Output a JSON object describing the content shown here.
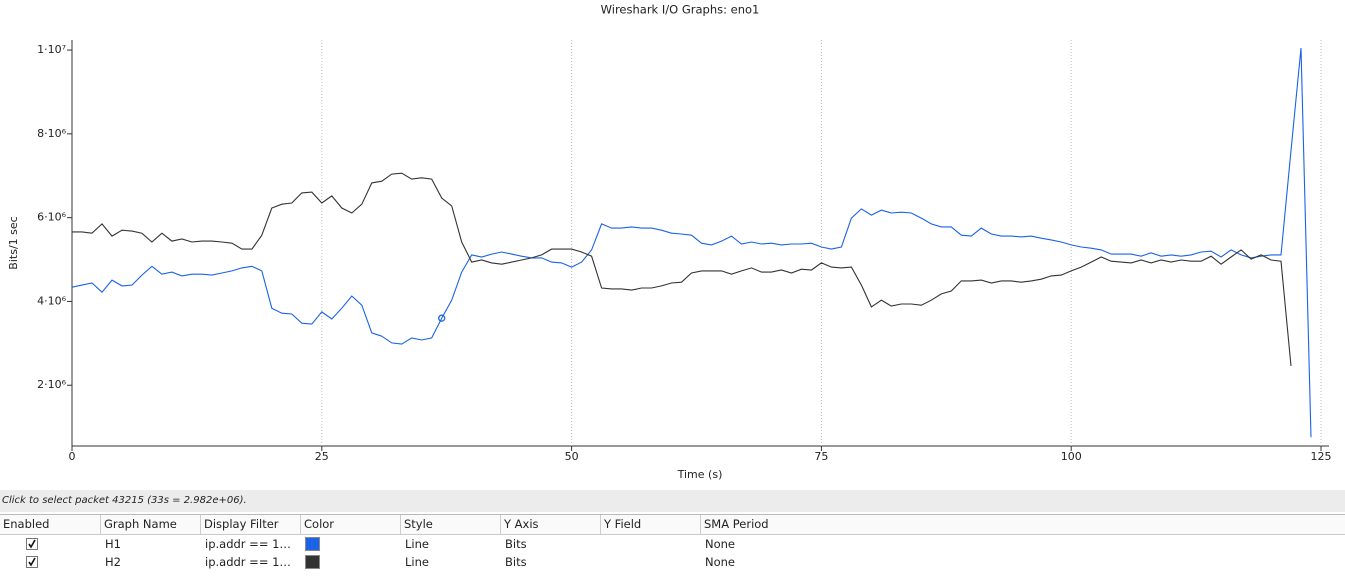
{
  "chart_data": {
    "type": "line",
    "title": "Wireshark I/O Graphs: eno1",
    "xlabel": "Time (s)",
    "ylabel": "Bits/1 sec",
    "x": [
      0,
      1,
      2,
      3,
      4,
      5,
      6,
      7,
      8,
      9,
      10,
      11,
      12,
      13,
      14,
      15,
      16,
      17,
      18,
      19,
      20,
      21,
      22,
      23,
      24,
      25,
      26,
      27,
      28,
      29,
      30,
      31,
      32,
      33,
      34,
      35,
      36,
      37,
      38,
      39,
      40,
      41,
      42,
      43,
      44,
      45,
      46,
      47,
      48,
      49,
      50,
      51,
      52,
      53,
      54,
      55,
      56,
      57,
      58,
      59,
      60,
      61,
      62,
      63,
      64,
      65,
      66,
      67,
      68,
      69,
      70,
      71,
      72,
      73,
      74,
      75,
      76,
      77,
      78,
      79,
      80,
      81,
      82,
      83,
      84,
      85,
      86,
      87,
      88,
      89,
      90,
      91,
      92,
      93,
      94,
      95,
      96,
      97,
      98,
      99,
      100,
      101,
      102,
      103,
      104,
      105,
      106,
      107,
      108,
      109,
      110,
      111,
      112,
      113,
      114,
      115,
      116,
      117,
      118,
      119,
      120,
      121,
      122,
      123,
      124
    ],
    "series": [
      {
        "name": "H1",
        "color": "#1a62e8",
        "values": [
          4340000,
          4390000,
          4440000,
          4220000,
          4510000,
          4370000,
          4390000,
          4630000,
          4840000,
          4650000,
          4700000,
          4610000,
          4650000,
          4650000,
          4630000,
          4680000,
          4730000,
          4800000,
          4840000,
          4730000,
          3840000,
          3720000,
          3700000,
          3480000,
          3460000,
          3750000,
          3580000,
          3840000,
          4130000,
          3910000,
          3250000,
          3170000,
          3010000,
          2982000,
          3130000,
          3080000,
          3130000,
          3600000,
          4030000,
          4700000,
          5110000,
          5060000,
          5130000,
          5180000,
          5130000,
          5080000,
          5040000,
          5040000,
          4940000,
          4920000,
          4820000,
          4940000,
          5230000,
          5850000,
          5750000,
          5750000,
          5780000,
          5750000,
          5750000,
          5700000,
          5630000,
          5610000,
          5580000,
          5390000,
          5350000,
          5440000,
          5560000,
          5370000,
          5420000,
          5370000,
          5390000,
          5350000,
          5370000,
          5370000,
          5390000,
          5300000,
          5250000,
          5300000,
          5990000,
          6210000,
          6060000,
          6180000,
          6110000,
          6130000,
          6110000,
          5990000,
          5850000,
          5780000,
          5780000,
          5580000,
          5560000,
          5750000,
          5610000,
          5560000,
          5560000,
          5540000,
          5560000,
          5510000,
          5470000,
          5420000,
          5350000,
          5300000,
          5270000,
          5230000,
          5130000,
          5130000,
          5130000,
          5080000,
          5160000,
          5080000,
          5110000,
          5080000,
          5110000,
          5180000,
          5200000,
          5060000,
          5230000,
          5110000,
          5040000,
          5080000,
          5110000,
          5110000,
          7600000,
          10050000,
          760000
        ]
      },
      {
        "name": "H2",
        "color": "#333333",
        "values": [
          5660000,
          5660000,
          5630000,
          5850000,
          5560000,
          5700000,
          5680000,
          5630000,
          5420000,
          5630000,
          5440000,
          5490000,
          5420000,
          5440000,
          5440000,
          5420000,
          5390000,
          5250000,
          5250000,
          5580000,
          6230000,
          6320000,
          6350000,
          6590000,
          6610000,
          6350000,
          6520000,
          6230000,
          6110000,
          6320000,
          6830000,
          6870000,
          7040000,
          7060000,
          6920000,
          6950000,
          6920000,
          6470000,
          6280000,
          5420000,
          4940000,
          4990000,
          4920000,
          4890000,
          4940000,
          4990000,
          5040000,
          5110000,
          5250000,
          5250000,
          5250000,
          5180000,
          5080000,
          4320000,
          4300000,
          4300000,
          4270000,
          4320000,
          4320000,
          4370000,
          4440000,
          4460000,
          4680000,
          4730000,
          4730000,
          4730000,
          4650000,
          4730000,
          4800000,
          4700000,
          4700000,
          4750000,
          4680000,
          4770000,
          4750000,
          4920000,
          4820000,
          4800000,
          4820000,
          4390000,
          3870000,
          4030000,
          3890000,
          3940000,
          3940000,
          3910000,
          4030000,
          4180000,
          4250000,
          4490000,
          4490000,
          4510000,
          4440000,
          4490000,
          4490000,
          4460000,
          4490000,
          4530000,
          4610000,
          4630000,
          4730000,
          4820000,
          4940000,
          5060000,
          4960000,
          4940000,
          4920000,
          4990000,
          4920000,
          4990000,
          4940000,
          4990000,
          4960000,
          4960000,
          5080000,
          4890000,
          5060000,
          5230000,
          5010000,
          5110000,
          4990000,
          4960000,
          2460000,
          null,
          null
        ]
      }
    ],
    "selected_point": {
      "series": 0,
      "x": 37
    },
    "xlim": [
      0,
      125.8
    ],
    "ylim": [
      550000,
      10240000
    ],
    "xticks": [
      0,
      25,
      50,
      75,
      100,
      125
    ],
    "yticks": [
      {
        "value": 2000000,
        "label": "2·10⁶"
      },
      {
        "value": 4000000,
        "label": "4·10⁶"
      },
      {
        "value": 6000000,
        "label": "6·10⁶"
      },
      {
        "value": 8000000,
        "label": "8·10⁶"
      },
      {
        "value": 10000000,
        "label": "1·10⁷"
      }
    ],
    "grid": true
  },
  "status": "Click to select packet 43215 (33s = 2.982e+06).",
  "table": {
    "headers": [
      "Enabled",
      "Graph Name",
      "Display Filter",
      "Color",
      "Style",
      "Y Axis",
      "Y Field",
      "SMA Period"
    ],
    "rows": [
      {
        "name": "H1",
        "filter": "ip.addr == 1…",
        "style": "Line",
        "y_axis": "Bits",
        "sma": "None"
      },
      {
        "name": "H2",
        "filter": "ip.addr == 1…",
        "style": "Line",
        "y_axis": "Bits",
        "sma": "None"
      }
    ]
  }
}
